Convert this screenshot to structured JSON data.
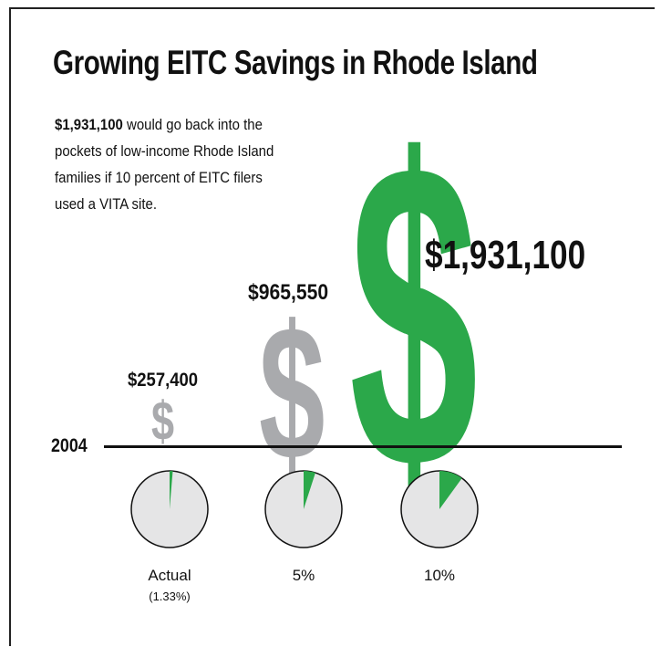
{
  "title": "Growing EITC Savings in Rhode Island",
  "description": {
    "highlight": "$1,931,100",
    "text": " would go back into the pockets of low-income Rhode Island families if 10 percent of EITC filers used a VITA site."
  },
  "icons": {
    "small": "$",
    "medium": "$",
    "large": "$"
  },
  "axis_label": "2004",
  "colors": {
    "green": "#2ba84a",
    "gray": "#a9aaad",
    "pie_bg": "#e5e5e6"
  },
  "chart_data": [
    {
      "type": "bar",
      "categories": [
        "Actual",
        "5%",
        "10%"
      ],
      "values": [
        257400,
        965550,
        1931100
      ],
      "value_labels": [
        "$257,400",
        "$965,550",
        "$1,931,100"
      ]
    },
    {
      "type": "pie",
      "categories": [
        "Actual",
        "5%",
        "10%"
      ],
      "values": [
        1.33,
        5,
        10
      ],
      "labels": [
        "Actual",
        "5%",
        "10%"
      ],
      "sublabels": [
        "(1.33%)",
        "",
        ""
      ]
    }
  ]
}
